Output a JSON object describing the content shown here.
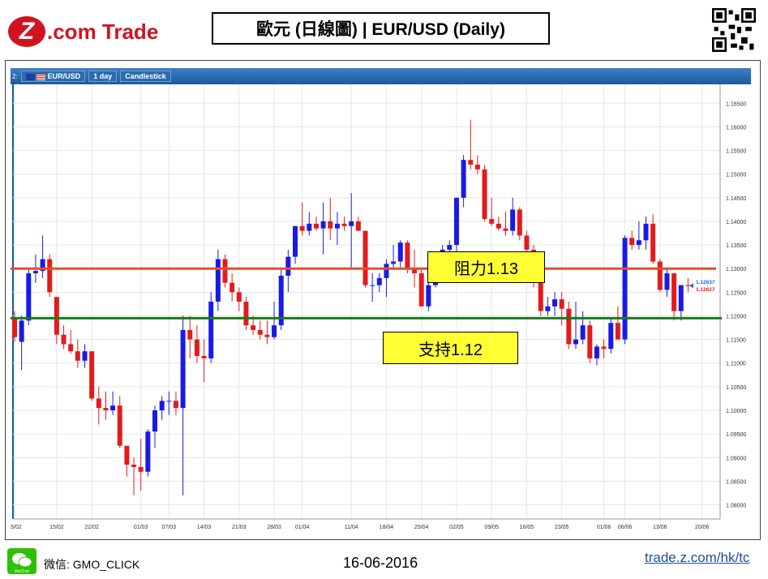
{
  "logo": {
    "mark": "Z",
    "text": ".com Trade"
  },
  "title": "歐元 (日線圖) | EUR/USD (Daily)",
  "toolbar": {
    "prefix": "2:",
    "symbol": "EUR/USD",
    "interval": "1 day",
    "type": "Candlestick"
  },
  "annotations": {
    "resistance": "阻力1.13",
    "support": "支持1.12"
  },
  "footer": {
    "wechat": "微信: GMO_CLICK",
    "wechat_icon_label": "WeChat",
    "date": "16-06-2016",
    "url": "trade.z.com/hk/tc"
  },
  "colors": {
    "up": "#1a1ae6",
    "down": "#e31b1b",
    "resistance": "#e0502a",
    "support": "#1a7a1a",
    "brand": "#d0141f",
    "label_bg": "#ffff33"
  },
  "chart_data": {
    "type": "candlestick",
    "title": "EUR/USD",
    "ylim": [
      1.077,
      1.169
    ],
    "y_ticks": [
      "1.16500",
      "1.16000",
      "1.15500",
      "1.15000",
      "1.14500",
      "1.14000",
      "1.13500",
      "1.13000",
      "1.12500",
      "1.12000",
      "1.11500",
      "1.11000",
      "1.10500",
      "1.10000",
      "1.09500",
      "1.09000",
      "1.08500",
      "1.08000"
    ],
    "x_ticks": [
      {
        "label": "05/02",
        "index": 0
      },
      {
        "label": "15/02",
        "index": 6
      },
      {
        "label": "22/02",
        "index": 11
      },
      {
        "label": "01/03",
        "index": 18
      },
      {
        "label": "07/03",
        "index": 22
      },
      {
        "label": "14/03",
        "index": 27
      },
      {
        "label": "21/03",
        "index": 32
      },
      {
        "label": "28/03",
        "index": 37
      },
      {
        "label": "01/04",
        "index": 41
      },
      {
        "label": "11/04",
        "index": 48
      },
      {
        "label": "18/04",
        "index": 53
      },
      {
        "label": "25/04",
        "index": 58
      },
      {
        "label": "02/05",
        "index": 63
      },
      {
        "label": "09/05",
        "index": 68
      },
      {
        "label": "16/05",
        "index": 73
      },
      {
        "label": "23/05",
        "index": 78
      },
      {
        "label": "01/06",
        "index": 84
      },
      {
        "label": "06/06",
        "index": 87
      },
      {
        "label": "13/06",
        "index": 92
      },
      {
        "label": "20/06",
        "index": 98
      }
    ],
    "resistance": 1.13,
    "support": 1.1195,
    "last_prices": [
      "1.12637",
      "1.12627"
    ],
    "candles": [
      [
        1.1195,
        1.121,
        1.1145,
        1.1155
      ],
      [
        1.1145,
        1.12,
        1.1085,
        1.119
      ],
      [
        1.119,
        1.13,
        1.118,
        1.129
      ],
      [
        1.129,
        1.133,
        1.127,
        1.1295
      ],
      [
        1.1295,
        1.137,
        1.128,
        1.132
      ],
      [
        1.132,
        1.133,
        1.124,
        1.125
      ],
      [
        1.124,
        1.124,
        1.114,
        1.116
      ],
      [
        1.116,
        1.118,
        1.113,
        1.114
      ],
      [
        1.114,
        1.117,
        1.112,
        1.1125
      ],
      [
        1.1125,
        1.115,
        1.109,
        1.1105
      ],
      [
        1.1105,
        1.114,
        1.109,
        1.1125
      ],
      [
        1.1125,
        1.1125,
        1.102,
        1.1025
      ],
      [
        1.1025,
        1.105,
        1.097,
        1.1005
      ],
      [
        1.1005,
        1.104,
        1.098,
        1.1
      ],
      [
        1.1,
        1.104,
        1.099,
        1.101
      ],
      [
        1.101,
        1.103,
        1.092,
        1.0925
      ],
      [
        1.0925,
        1.0925,
        1.086,
        1.0885
      ],
      [
        1.0885,
        1.09,
        1.082,
        1.088
      ],
      [
        1.088,
        1.094,
        1.083,
        1.087
      ],
      [
        1.087,
        1.096,
        1.086,
        1.0955
      ],
      [
        1.0955,
        1.101,
        1.092,
        1.1
      ],
      [
        1.1,
        1.103,
        1.098,
        1.102
      ],
      [
        1.102,
        1.104,
        1.099,
        1.102
      ],
      [
        1.102,
        1.104,
        1.099,
        1.1005
      ],
      [
        1.1005,
        1.12,
        1.082,
        1.117
      ],
      [
        1.117,
        1.12,
        1.111,
        1.115
      ],
      [
        1.115,
        1.118,
        1.11,
        1.1115
      ],
      [
        1.1115,
        1.115,
        1.106,
        1.111
      ],
      [
        1.111,
        1.125,
        1.11,
        1.123
      ],
      [
        1.123,
        1.134,
        1.121,
        1.132
      ],
      [
        1.132,
        1.133,
        1.126,
        1.127
      ],
      [
        1.127,
        1.129,
        1.123,
        1.125
      ],
      [
        1.125,
        1.126,
        1.121,
        1.123
      ],
      [
        1.123,
        1.124,
        1.117,
        1.118
      ],
      [
        1.118,
        1.12,
        1.116,
        1.117
      ],
      [
        1.117,
        1.119,
        1.115,
        1.116
      ],
      [
        1.116,
        1.119,
        1.114,
        1.1155
      ],
      [
        1.1155,
        1.123,
        1.115,
        1.118
      ],
      [
        1.118,
        1.13,
        1.117,
        1.1285
      ],
      [
        1.1285,
        1.134,
        1.125,
        1.1325
      ],
      [
        1.1325,
        1.139,
        1.131,
        1.139
      ],
      [
        1.139,
        1.144,
        1.137,
        1.138
      ],
      [
        1.138,
        1.142,
        1.137,
        1.1395
      ],
      [
        1.1395,
        1.141,
        1.138,
        1.1385
      ],
      [
        1.1385,
        1.144,
        1.133,
        1.14
      ],
      [
        1.14,
        1.145,
        1.136,
        1.1385
      ],
      [
        1.1385,
        1.142,
        1.135,
        1.1395
      ],
      [
        1.1395,
        1.141,
        1.138,
        1.139
      ],
      [
        1.139,
        1.146,
        1.13,
        1.14
      ],
      [
        1.14,
        1.141,
        1.138,
        1.138
      ],
      [
        1.138,
        1.138,
        1.126,
        1.1265
      ],
      [
        1.1265,
        1.129,
        1.123,
        1.1265
      ],
      [
        1.1265,
        1.129,
        1.125,
        1.128
      ],
      [
        1.128,
        1.132,
        1.124,
        1.131
      ],
      [
        1.131,
        1.135,
        1.13,
        1.1315
      ],
      [
        1.1315,
        1.136,
        1.13,
        1.1355
      ],
      [
        1.1355,
        1.136,
        1.129,
        1.13
      ],
      [
        1.13,
        1.134,
        1.126,
        1.129
      ],
      [
        1.129,
        1.13,
        1.122,
        1.122
      ],
      [
        1.122,
        1.128,
        1.121,
        1.1265
      ],
      [
        1.1265,
        1.13,
        1.126,
        1.129
      ],
      [
        1.129,
        1.135,
        1.128,
        1.134
      ],
      [
        1.134,
        1.136,
        1.129,
        1.135
      ],
      [
        1.135,
        1.145,
        1.132,
        1.145
      ],
      [
        1.145,
        1.154,
        1.143,
        1.153
      ],
      [
        1.153,
        1.1615,
        1.151,
        1.152
      ],
      [
        1.152,
        1.154,
        1.15,
        1.151
      ],
      [
        1.151,
        1.152,
        1.14,
        1.1405
      ],
      [
        1.1405,
        1.145,
        1.139,
        1.1395
      ],
      [
        1.1395,
        1.141,
        1.138,
        1.1385
      ],
      [
        1.1385,
        1.142,
        1.137,
        1.138
      ],
      [
        1.138,
        1.145,
        1.137,
        1.1425
      ],
      [
        1.1425,
        1.143,
        1.136,
        1.137
      ],
      [
        1.137,
        1.138,
        1.133,
        1.134
      ],
      [
        1.134,
        1.135,
        1.126,
        1.127
      ],
      [
        1.127,
        1.128,
        1.12,
        1.121
      ],
      [
        1.121,
        1.124,
        1.12,
        1.122
      ],
      [
        1.122,
        1.125,
        1.12,
        1.1235
      ],
      [
        1.1235,
        1.125,
        1.118,
        1.1215
      ],
      [
        1.1215,
        1.123,
        1.113,
        1.114
      ],
      [
        1.114,
        1.123,
        1.113,
        1.115
      ],
      [
        1.115,
        1.121,
        1.114,
        1.118
      ],
      [
        1.118,
        1.119,
        1.11,
        1.111
      ],
      [
        1.111,
        1.114,
        1.1095,
        1.1135
      ],
      [
        1.1135,
        1.115,
        1.111,
        1.113
      ],
      [
        1.113,
        1.1195,
        1.112,
        1.1185
      ],
      [
        1.1185,
        1.122,
        1.115,
        1.115
      ],
      [
        1.115,
        1.137,
        1.114,
        1.1365
      ],
      [
        1.1365,
        1.138,
        1.134,
        1.135
      ],
      [
        1.135,
        1.14,
        1.134,
        1.136
      ],
      [
        1.136,
        1.141,
        1.134,
        1.1395
      ],
      [
        1.1395,
        1.1415,
        1.131,
        1.1315
      ],
      [
        1.1315,
        1.132,
        1.125,
        1.1255
      ],
      [
        1.1255,
        1.13,
        1.124,
        1.129
      ],
      [
        1.129,
        1.129,
        1.119,
        1.121
      ],
      [
        1.121,
        1.1265,
        1.119,
        1.1265
      ],
      [
        1.1265,
        1.128,
        1.125,
        1.1263
      ]
    ]
  }
}
